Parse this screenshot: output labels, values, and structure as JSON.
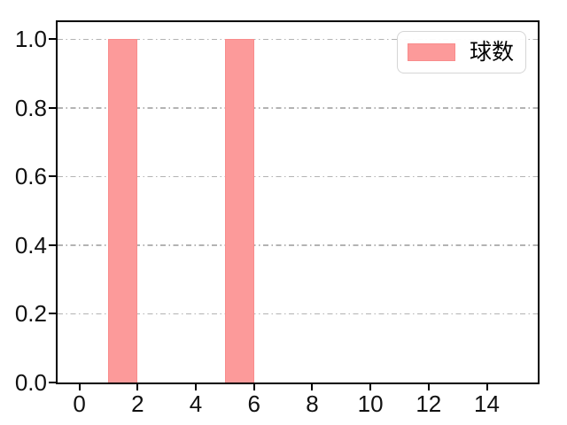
{
  "figure": {
    "background": "#ffffff"
  },
  "chart_data": {
    "type": "bar",
    "title": "",
    "xlabel": "",
    "ylabel": "",
    "legend": {
      "label": "球数",
      "position": "upper-right"
    },
    "series": [
      {
        "name": "球数",
        "bars": [
          {
            "x_start": 1,
            "x_end": 2,
            "value": 1.0
          },
          {
            "x_start": 5,
            "x_end": 6,
            "value": 1.0
          }
        ]
      }
    ],
    "xlim": [
      -0.75,
      15.75
    ],
    "ylim": [
      0,
      1.05
    ],
    "xticks": [
      {
        "value": 0,
        "label": "0"
      },
      {
        "value": 2,
        "label": "2"
      },
      {
        "value": 4,
        "label": "4"
      },
      {
        "value": 6,
        "label": "6"
      },
      {
        "value": 8,
        "label": "8"
      },
      {
        "value": 10,
        "label": "10"
      },
      {
        "value": 12,
        "label": "12"
      },
      {
        "value": 14,
        "label": "14"
      }
    ],
    "yticks": [
      {
        "value": 0,
        "label": "0.0"
      },
      {
        "value": 0.2,
        "label": "0.2"
      },
      {
        "value": 0.4,
        "label": "0.4"
      },
      {
        "value": 0.6,
        "label": "0.6"
      },
      {
        "value": 0.8,
        "label": "0.8"
      },
      {
        "value": 1,
        "label": "1.0"
      }
    ],
    "grid": {
      "axis": "y",
      "line_style": "dash-dot",
      "color": "#b3b3b3"
    },
    "colors": {
      "bar_fill": "#fc9a9a",
      "bar_edge": "#f98c8c",
      "axis": "#000000",
      "text": "#111111",
      "legend_border": "#d5d5d5",
      "legend_background": "#ffffff"
    }
  }
}
